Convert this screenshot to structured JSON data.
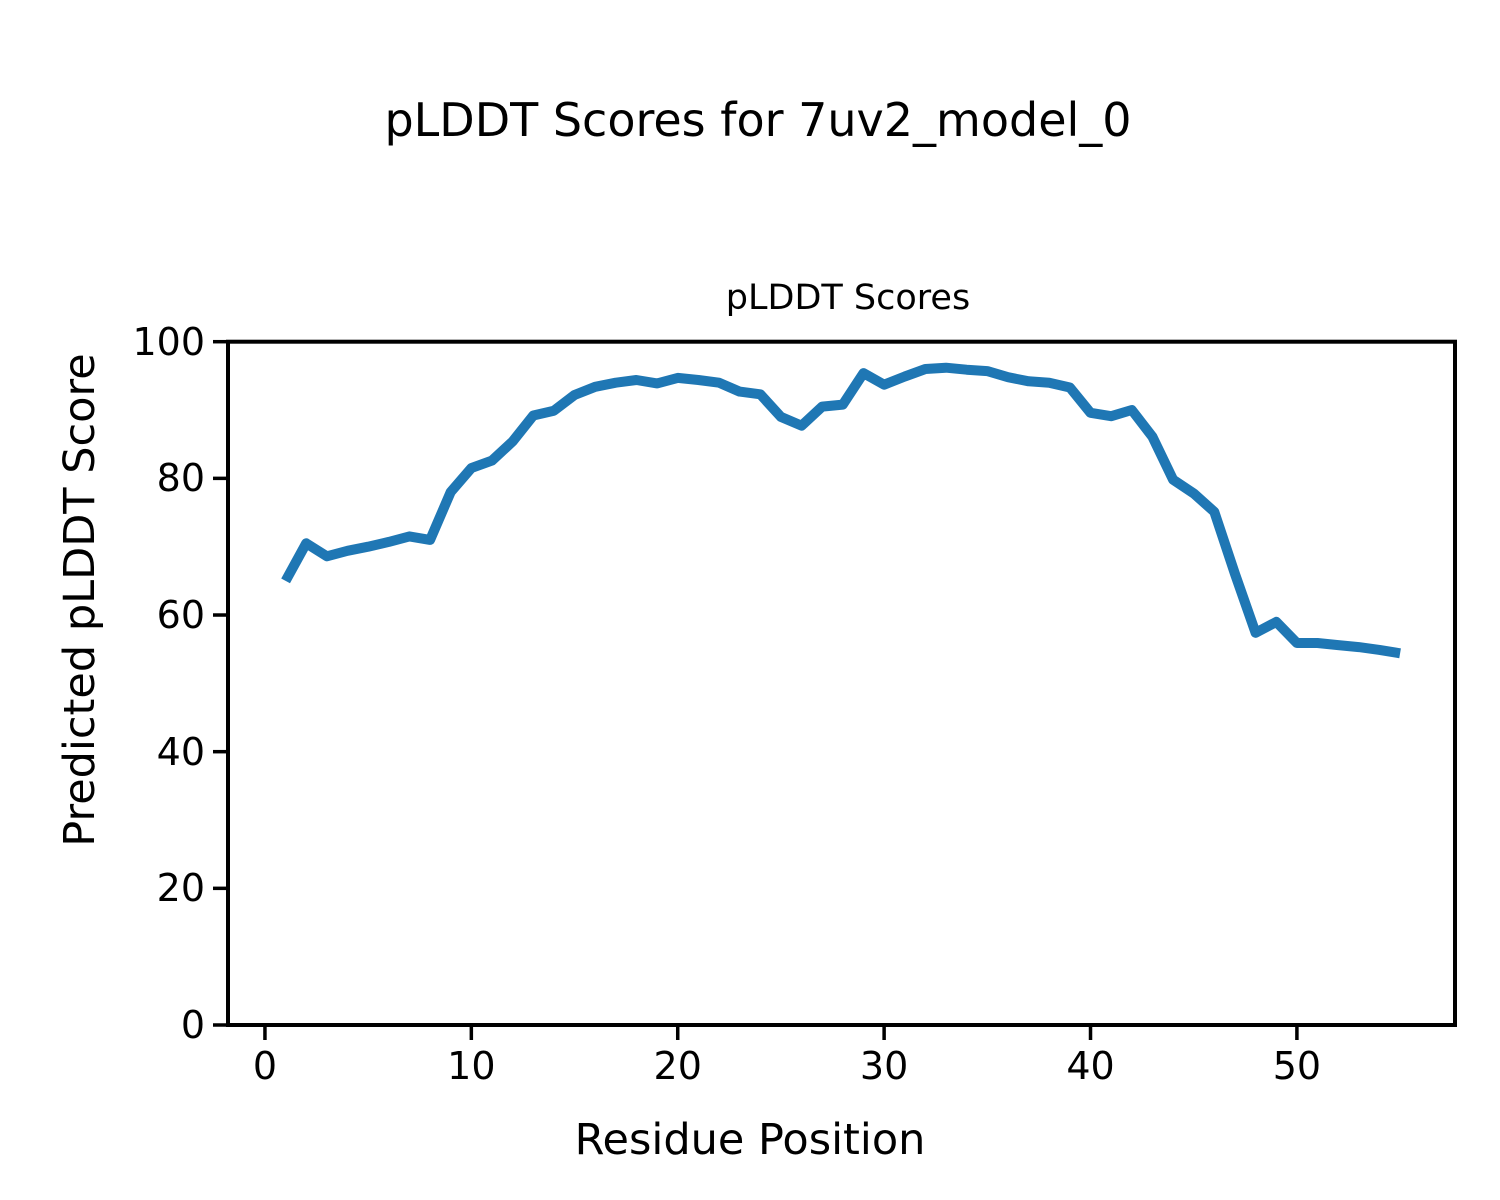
{
  "figure_title": "pLDDT Scores for 7uv2_model_0",
  "chart_data": {
    "type": "line",
    "title": "pLDDT Scores",
    "xlabel": "Residue Position",
    "ylabel": "Predicted pLDDT Score",
    "x": [
      1,
      2,
      3,
      4,
      5,
      6,
      7,
      8,
      9,
      10,
      11,
      12,
      13,
      14,
      15,
      16,
      17,
      18,
      19,
      20,
      21,
      22,
      23,
      24,
      25,
      26,
      27,
      28,
      29,
      30,
      31,
      32,
      33,
      34,
      35,
      36,
      37,
      38,
      39,
      40,
      41,
      42,
      43,
      44,
      45,
      46,
      47,
      48,
      49,
      50,
      51,
      52,
      53,
      54,
      55
    ],
    "series": [
      {
        "name": "pLDDT",
        "values": [
          65.0,
          70.5,
          68.6,
          69.4,
          70.0,
          70.7,
          71.5,
          71.0,
          78.0,
          81.5,
          82.6,
          85.4,
          89.2,
          89.9,
          92.2,
          93.4,
          94.0,
          94.4,
          93.9,
          94.7,
          94.4,
          94.0,
          92.7,
          92.3,
          89.0,
          87.7,
          90.5,
          90.8,
          95.4,
          93.7,
          94.9,
          96.0,
          96.2,
          95.9,
          95.7,
          94.8,
          94.2,
          94.0,
          93.3,
          89.6,
          89.1,
          90.0,
          86.1,
          79.8,
          77.8,
          75.1,
          66.0,
          57.4,
          59.0,
          55.9,
          55.9,
          55.6,
          55.3,
          54.9,
          54.4
        ]
      }
    ],
    "xlim": [
      -1.79,
      57.66
    ],
    "ylim": [
      0,
      100
    ],
    "xticks": [
      0,
      10,
      20,
      30,
      40,
      50
    ],
    "yticks": [
      0,
      20,
      40,
      60,
      80,
      100
    ],
    "line_color": "#1f77b4",
    "line_width": 10,
    "axis_color": "#000000",
    "grid": false,
    "legend_position": "none"
  }
}
